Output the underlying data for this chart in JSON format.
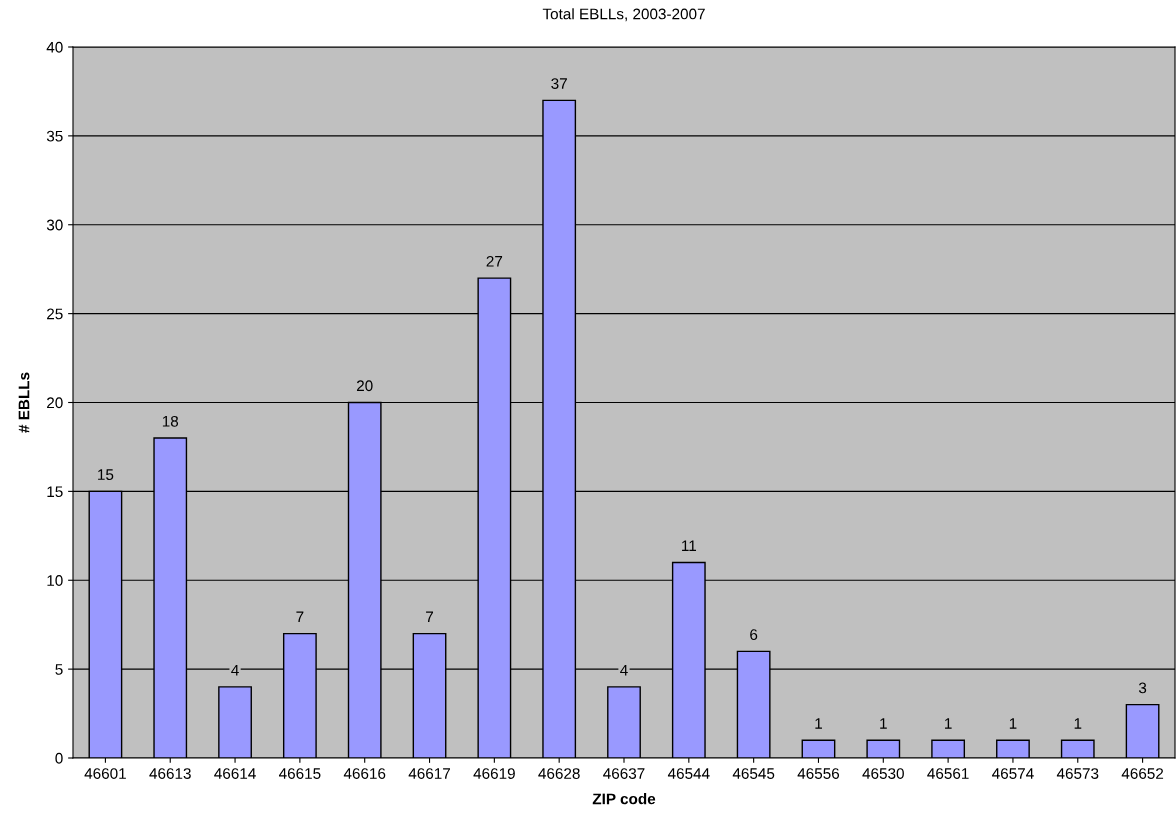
{
  "chart_data": {
    "type": "bar",
    "title": "Total EBLLs, 2003-2007",
    "xlabel": "ZIP code",
    "ylabel": "# EBLLs",
    "categories": [
      "46601",
      "46613",
      "46614",
      "46615",
      "46616",
      "46617",
      "46619",
      "46628",
      "46637",
      "46544",
      "46545",
      "46556",
      "46530",
      "46561",
      "46574",
      "46573",
      "46652"
    ],
    "values": [
      15,
      18,
      4,
      7,
      20,
      7,
      27,
      37,
      4,
      11,
      6,
      1,
      1,
      1,
      1,
      1,
      3
    ],
    "color": "#9999ff",
    "ylim": [
      0,
      40
    ],
    "yticks": [
      0,
      5,
      10,
      15,
      20,
      25,
      30,
      35,
      40
    ],
    "grid": "y",
    "data_labels": true,
    "legend": false
  }
}
